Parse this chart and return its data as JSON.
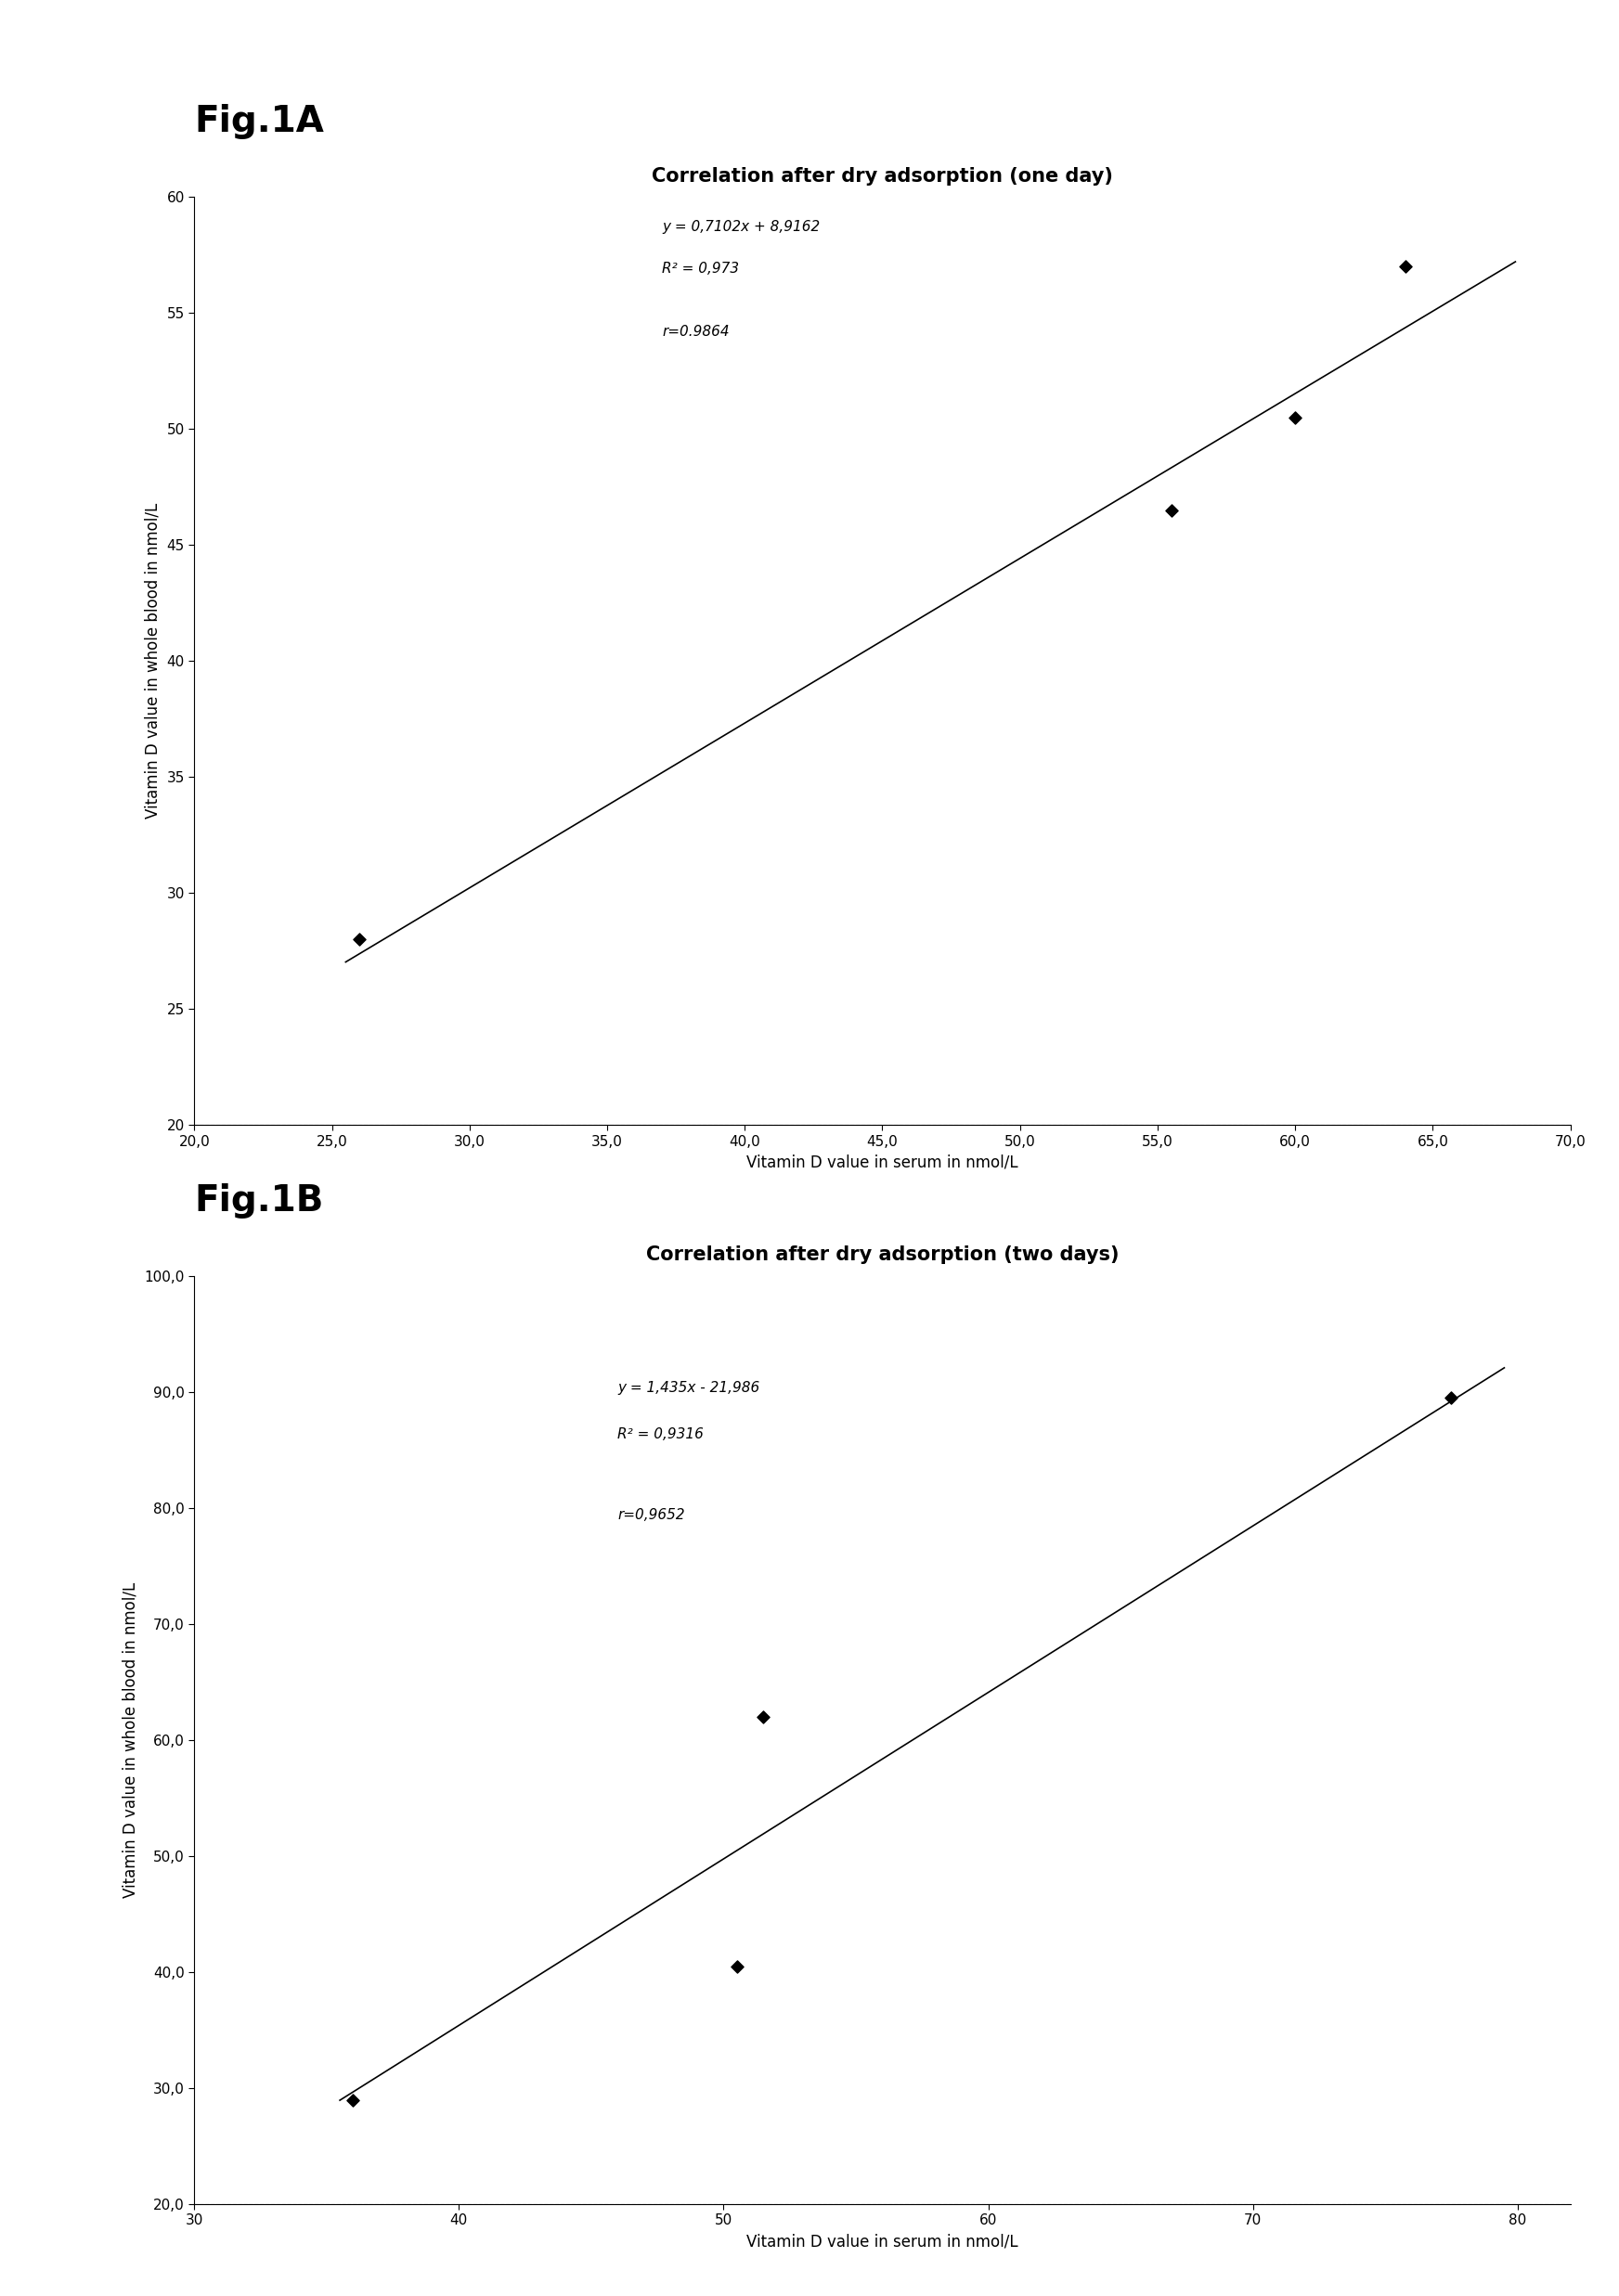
{
  "figA": {
    "label": "Fig.1A",
    "title": "Correlation after dry adsorption (one day)",
    "x_data": [
      26.0,
      55.5,
      60.0,
      64.0
    ],
    "y_data": [
      28.0,
      46.5,
      50.5,
      57.0
    ],
    "slope": 0.7102,
    "intercept": 8.9162,
    "equation": "y = 0,7102x + 8,9162",
    "r2_text": "R² = 0,973",
    "r_text": "r=0.9864",
    "xlim": [
      20.0,
      70.0
    ],
    "ylim": [
      20.0,
      60.0
    ],
    "xtick_labels": [
      "20,0",
      "25,0",
      "30,0",
      "35,0",
      "40,0",
      "45,0",
      "50,0",
      "55,0",
      "60,0",
      "65,0",
      "70,0"
    ],
    "xtick_vals": [
      20.0,
      25.0,
      30.0,
      35.0,
      40.0,
      45.0,
      50.0,
      55.0,
      60.0,
      65.0,
      70.0
    ],
    "ytick_labels": [
      "20",
      "25",
      "30",
      "35",
      "40",
      "45",
      "50",
      "55",
      "60"
    ],
    "ytick_vals": [
      20,
      25,
      30,
      35,
      40,
      45,
      50,
      55,
      60
    ],
    "xlabel": "Vitamin D value in serum in nmol/L",
    "ylabel": "Vitamin D value in whole blood in nmol/L",
    "line_x_start": 25.5,
    "line_x_end": 68.0,
    "ann_eq_x": 37.0,
    "ann_eq_y": 59.0,
    "ann_r2_x": 37.0,
    "ann_r2_y": 57.2,
    "ann_r_x": 37.0,
    "ann_r_y": 54.5
  },
  "figB": {
    "label": "Fig.1B",
    "title": "Correlation after dry adsorption (two days)",
    "x_data": [
      36.0,
      50.5,
      51.5,
      77.5
    ],
    "y_data": [
      29.0,
      40.5,
      62.0,
      89.5
    ],
    "slope": 1.435,
    "intercept": -21.986,
    "equation": "y = 1,435x - 21,986",
    "r2_text": "R² = 0,9316",
    "r_text": "r=0,9652",
    "xlim": [
      30.0,
      82.0
    ],
    "ylim": [
      20.0,
      100.0
    ],
    "xtick_labels": [
      "30",
      "40",
      "50",
      "60",
      "70",
      "80"
    ],
    "xtick_vals": [
      30,
      40,
      50,
      60,
      70,
      80
    ],
    "ytick_labels": [
      "20,0",
      "30,0",
      "40,0",
      "50,0",
      "60,0",
      "70,0",
      "80,0",
      "90,0",
      "100,0"
    ],
    "ytick_vals": [
      20.0,
      30.0,
      40.0,
      50.0,
      60.0,
      70.0,
      80.0,
      90.0,
      100.0
    ],
    "xlabel": "Vitamin D value in serum in nmol/L",
    "ylabel": "Vitamin D value in whole blood in nmol/L",
    "line_x_start": 35.5,
    "line_x_end": 79.5,
    "ann_eq_x": 46.0,
    "ann_eq_y": 91.0,
    "ann_r2_x": 46.0,
    "ann_r2_y": 87.0,
    "ann_r_x": 46.0,
    "ann_r_y": 80.0
  },
  "background_color": "#ffffff",
  "marker_color": "#000000",
  "line_color": "#000000",
  "label_fontsize": 28,
  "title_fontsize": 15,
  "tick_fontsize": 11,
  "axis_label_fontsize": 12,
  "annotation_fontsize": 11
}
